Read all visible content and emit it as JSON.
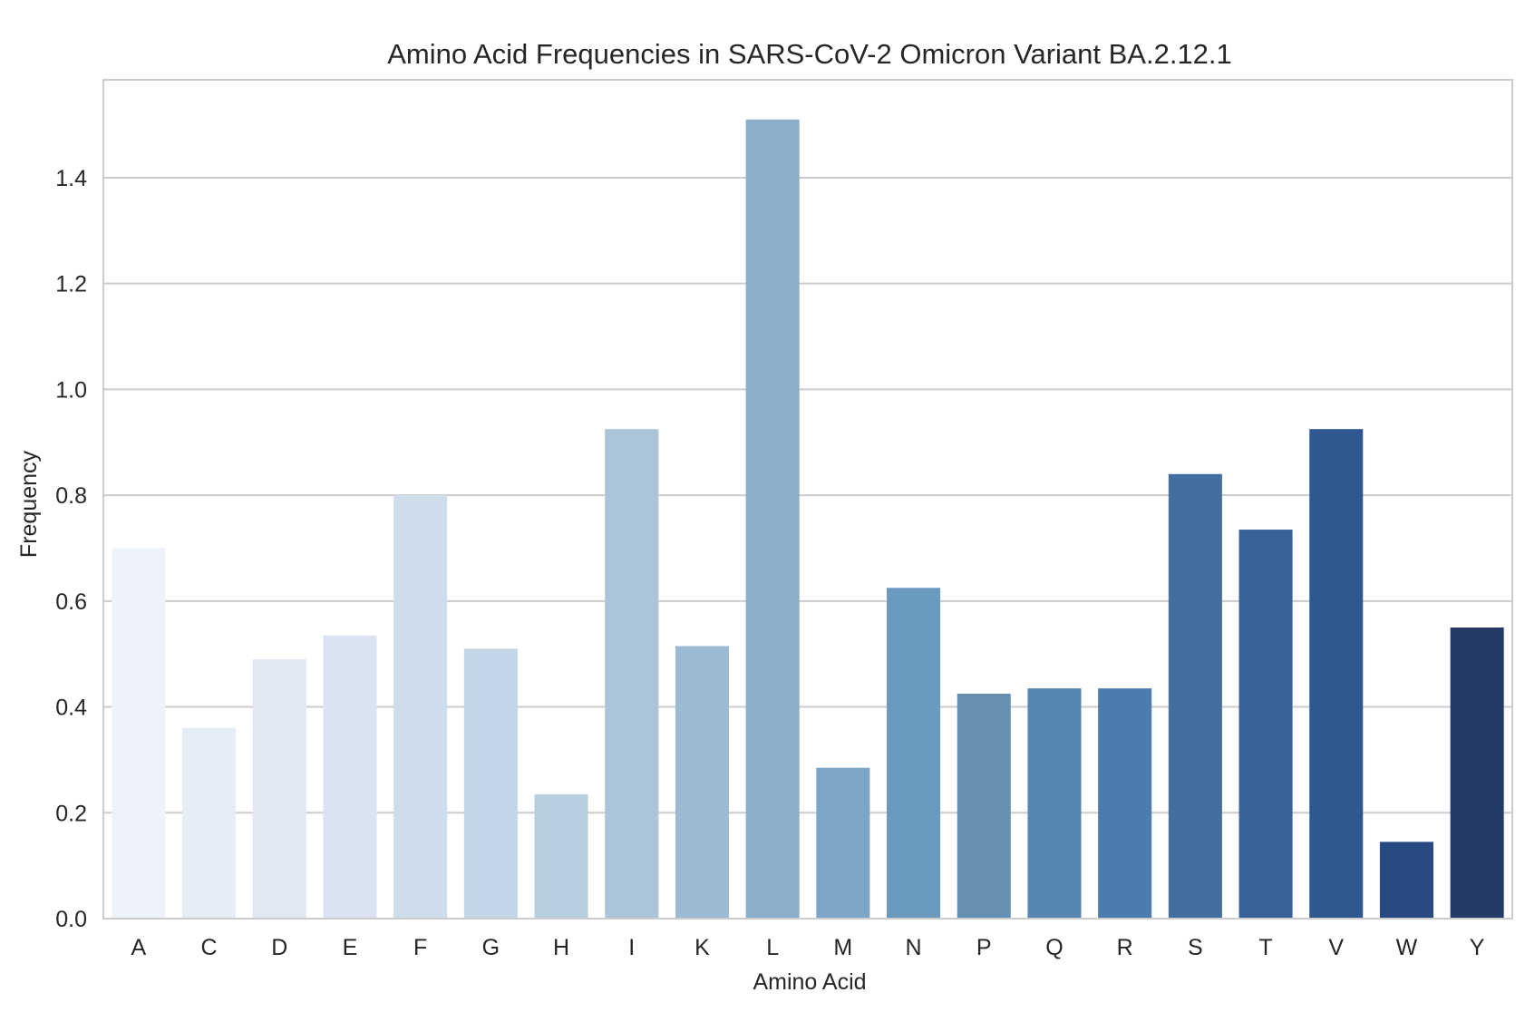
{
  "chart_data": {
    "type": "bar",
    "title": "Amino Acid Frequencies in SARS-CoV-2 Omicron Variant BA.2.12.1",
    "xlabel": "Amino Acid",
    "ylabel": "Frequency",
    "ylim": [
      0,
      1.585
    ],
    "yticks": [
      0.0,
      0.2,
      0.4,
      0.6,
      0.8,
      1.0,
      1.2,
      1.4
    ],
    "ytick_labels": [
      "0.0",
      "0.2",
      "0.4",
      "0.6",
      "0.8",
      "1.0",
      "1.2",
      "1.4"
    ],
    "grid": "horizontal",
    "palette": "Blues",
    "categories": [
      "A",
      "C",
      "D",
      "E",
      "F",
      "G",
      "H",
      "I",
      "K",
      "L",
      "M",
      "N",
      "P",
      "Q",
      "R",
      "S",
      "T",
      "V",
      "W",
      "Y"
    ],
    "values": [
      0.7,
      0.36,
      0.49,
      0.535,
      0.8,
      0.51,
      0.235,
      0.925,
      0.515,
      1.51,
      0.285,
      0.625,
      0.425,
      0.435,
      0.435,
      0.84,
      0.735,
      0.925,
      0.145,
      0.55
    ],
    "colors": [
      "#eef3f9",
      "#e5edf6",
      "#dfe8f3",
      "#d9e4f0",
      "#ceddeb",
      "#c3d6e7",
      "#b6cede",
      "#abc4d8",
      "#9bbad3",
      "#8bafcb",
      "#7ca5c7",
      "#6b9abf",
      "#6590b2",
      "#5786b3",
      "#4c7bad",
      "#426ea0",
      "#37629a",
      "#2e588f",
      "#284a83",
      "#243b66"
    ]
  }
}
